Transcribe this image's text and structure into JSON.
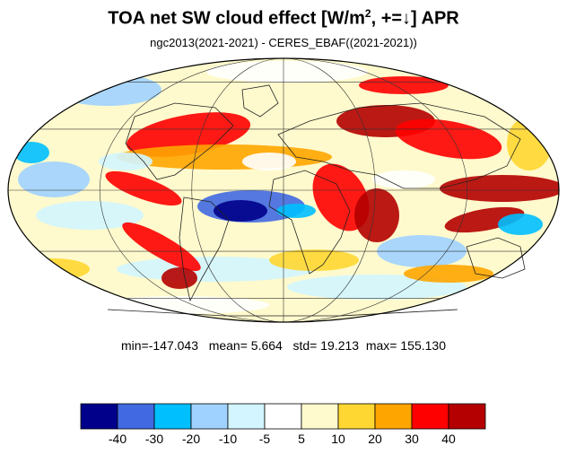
{
  "title": {
    "main": "TOA net SW cloud effect [W/m",
    "superscript": "2",
    "suffix": ", +=↓]  APR"
  },
  "subtitle": "ngc2013(2021-2021) - CERES_EBAF((2021-2021))",
  "stats": {
    "min_label": "min=",
    "min": "-147.043",
    "mean_label": "mean=",
    "mean": " 5.664",
    "std_label": "std=",
    "std": " 19.213",
    "max_label": "max=",
    "max": " 155.130"
  },
  "colorbar": {
    "colors": [
      "#00008b",
      "#4169e1",
      "#00bfff",
      "#a0d2ff",
      "#d2f5ff",
      "#ffffff",
      "#fffacd",
      "#ffd732",
      "#ffa500",
      "#ff0000",
      "#b40000"
    ],
    "ticks": [
      "-40",
      "-30",
      "-20",
      "-10",
      "-5",
      "5",
      "10",
      "20",
      "30",
      "40"
    ]
  },
  "map": {
    "projection": "Mollweide",
    "field": "TOA net SW cloud effect difference",
    "month": "APR"
  }
}
